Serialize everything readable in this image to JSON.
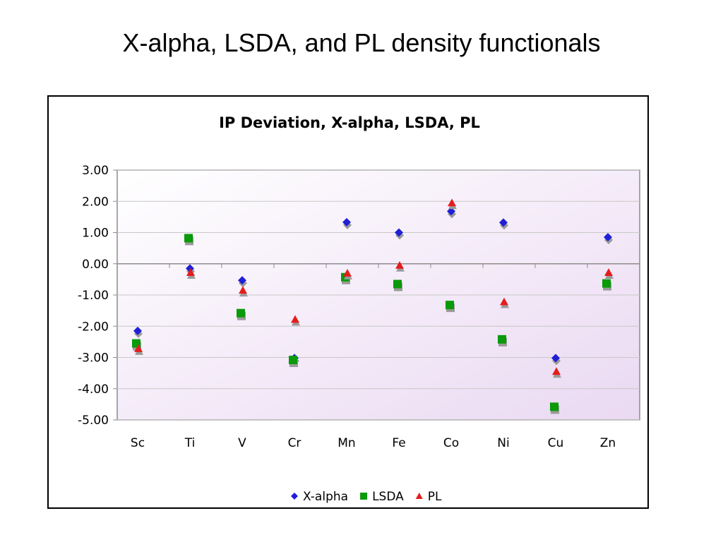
{
  "slide": {
    "title": "X-alpha, LSDA, and PL density functionals"
  },
  "chart_data": {
    "type": "scatter",
    "title": "IP Deviation, X-alpha, LSDA, PL",
    "xlabel": "",
    "ylabel": "",
    "categories": [
      "Sc",
      "Ti",
      "V",
      "Cr",
      "Mn",
      "Fe",
      "Co",
      "Ni",
      "Cu",
      "Zn"
    ],
    "ylim": [
      -5.0,
      3.0
    ],
    "yticks": [
      "3.00",
      "2.00",
      "1.00",
      "0.00",
      "-1.00",
      "-2.00",
      "-3.00",
      "-4.00",
      "-5.00"
    ],
    "ytick_values": [
      3,
      2,
      1,
      0,
      -1,
      -2,
      -3,
      -4,
      -5
    ],
    "grid": true,
    "legend_position": "bottom",
    "series": [
      {
        "name": "X-alpha",
        "marker": "diamond",
        "color": "#1f1fd6",
        "values": [
          -2.15,
          -0.15,
          -0.53,
          -3.02,
          1.33,
          1.0,
          1.68,
          1.32,
          -3.02,
          0.85
        ]
      },
      {
        "name": "LSDA",
        "marker": "square",
        "color": "#0a9a0a",
        "values": [
          -2.55,
          0.82,
          -1.58,
          -3.08,
          -0.43,
          -0.65,
          -1.32,
          -2.42,
          -4.58,
          -0.63
        ]
      },
      {
        "name": "PL",
        "marker": "triangle",
        "color": "#e61c1c",
        "values": [
          -2.72,
          -0.28,
          -0.85,
          -1.78,
          -0.3,
          -0.05,
          1.95,
          -1.22,
          -3.45,
          -0.28
        ]
      }
    ]
  }
}
